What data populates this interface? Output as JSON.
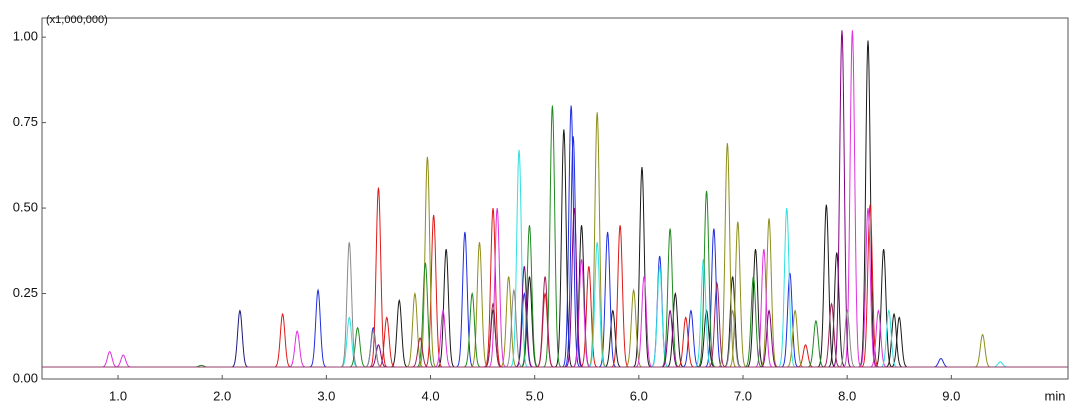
{
  "chart_data": {
    "type": "chromatogram",
    "y_unit": "(x1,000,000)",
    "x_label": "min",
    "xlim": [
      0.27,
      10.12
    ],
    "ylim": [
      0,
      1.056
    ],
    "baseline": 0.035,
    "peak_width": 0.022,
    "xticks": [
      {
        "value": 1,
        "label": "1.0"
      },
      {
        "value": 2,
        "label": "2.0"
      },
      {
        "value": 3,
        "label": "3.0"
      },
      {
        "value": 4,
        "label": "4.0"
      },
      {
        "value": 5,
        "label": "5.0"
      },
      {
        "value": 6,
        "label": "6.0"
      },
      {
        "value": 7,
        "label": "7.0"
      },
      {
        "value": 8,
        "label": "8.0"
      },
      {
        "value": 9,
        "label": "9.0"
      }
    ],
    "yticks": [
      {
        "value": 0,
        "label": "0.00"
      },
      {
        "value": 0.25,
        "label": "0.25"
      },
      {
        "value": 0.5,
        "label": "0.50"
      },
      {
        "value": 0.75,
        "label": "0.75"
      },
      {
        "value": 1,
        "label": "1.00"
      }
    ],
    "series": [
      {
        "color": "#1a1a1a",
        "x": [
          3.7,
          4.15,
          4.6,
          4.95,
          5.28,
          5.45,
          5.75,
          6.03,
          6.35,
          6.65,
          6.9,
          7.12,
          7.8,
          7.9,
          8.2,
          8.35,
          8.45,
          8.5
        ],
        "values": [
          0.23,
          0.38,
          0.2,
          0.3,
          0.73,
          0.45,
          0.2,
          0.62,
          0.25,
          0.2,
          0.3,
          0.38,
          0.51,
          0.37,
          0.99,
          0.38,
          0.19,
          0.18
        ]
      },
      {
        "color": "#1f2ee0",
        "x": [
          2.92,
          3.45,
          4.33,
          4.9,
          5.35,
          5.37,
          5.7,
          6.2,
          6.5,
          6.72,
          7.45,
          8.9
        ],
        "values": [
          0.26,
          0.15,
          0.43,
          0.25,
          0.8,
          0.71,
          0.43,
          0.36,
          0.2,
          0.44,
          0.31,
          0.06
        ]
      },
      {
        "color": "#1a1a80",
        "x": [
          2.17
        ],
        "values": [
          0.2
        ]
      },
      {
        "color": "#e01818",
        "x": [
          2.58,
          3.5,
          3.58,
          4.03,
          4.6,
          5.1,
          5.52,
          5.82,
          6.45,
          7.6,
          8.22
        ],
        "values": [
          0.19,
          0.56,
          0.18,
          0.48,
          0.5,
          0.25,
          0.33,
          0.45,
          0.18,
          0.1,
          0.51
        ]
      },
      {
        "color": "#8f8f1a",
        "x": [
          3.85,
          3.97,
          4.47,
          4.75,
          5.6,
          5.95,
          6.85,
          6.95,
          7.25,
          7.5,
          9.3
        ],
        "values": [
          0.25,
          0.65,
          0.4,
          0.3,
          0.78,
          0.26,
          0.69,
          0.46,
          0.47,
          0.2,
          0.13
        ]
      },
      {
        "color": "#e030e0",
        "x": [
          0.92,
          1.05,
          2.72,
          4.12,
          4.64,
          5.45,
          6.05,
          7.2,
          8.05,
          8.2,
          8.3
        ],
        "values": [
          0.08,
          0.07,
          0.14,
          0.2,
          0.5,
          0.35,
          0.3,
          0.38,
          1.02,
          0.5,
          0.2
        ]
      },
      {
        "color": "#30e0e0",
        "x": [
          3.22,
          4.85,
          5.6,
          6.2,
          6.62,
          7.42,
          8.4,
          9.47
        ],
        "values": [
          0.18,
          0.67,
          0.4,
          0.33,
          0.35,
          0.5,
          0.2,
          0.05
        ]
      },
      {
        "color": "#208a20",
        "x": [
          1.8,
          3.3,
          3.95,
          4.4,
          4.95,
          5.17,
          6.3,
          6.65,
          7.1,
          7.7
        ],
        "values": [
          0.04,
          0.15,
          0.34,
          0.25,
          0.45,
          0.8,
          0.44,
          0.55,
          0.3,
          0.17
        ]
      },
      {
        "color": "#800080",
        "x": [
          3.5,
          4.9,
          5.38,
          6.3,
          7.25,
          7.95
        ],
        "values": [
          0.1,
          0.33,
          0.5,
          0.2,
          0.2,
          1.02
        ]
      },
      {
        "color": "#8a8a8a",
        "x": [
          3.22,
          3.45,
          4.8,
          6.9,
          8.0
        ],
        "values": [
          0.4,
          0.14,
          0.26,
          0.2,
          0.2
        ]
      },
      {
        "color": "#a0205a",
        "x": [
          3.9,
          4.6,
          5.1,
          6.75,
          7.85
        ],
        "values": [
          0.12,
          0.22,
          0.3,
          0.28,
          0.22
        ]
      }
    ]
  }
}
